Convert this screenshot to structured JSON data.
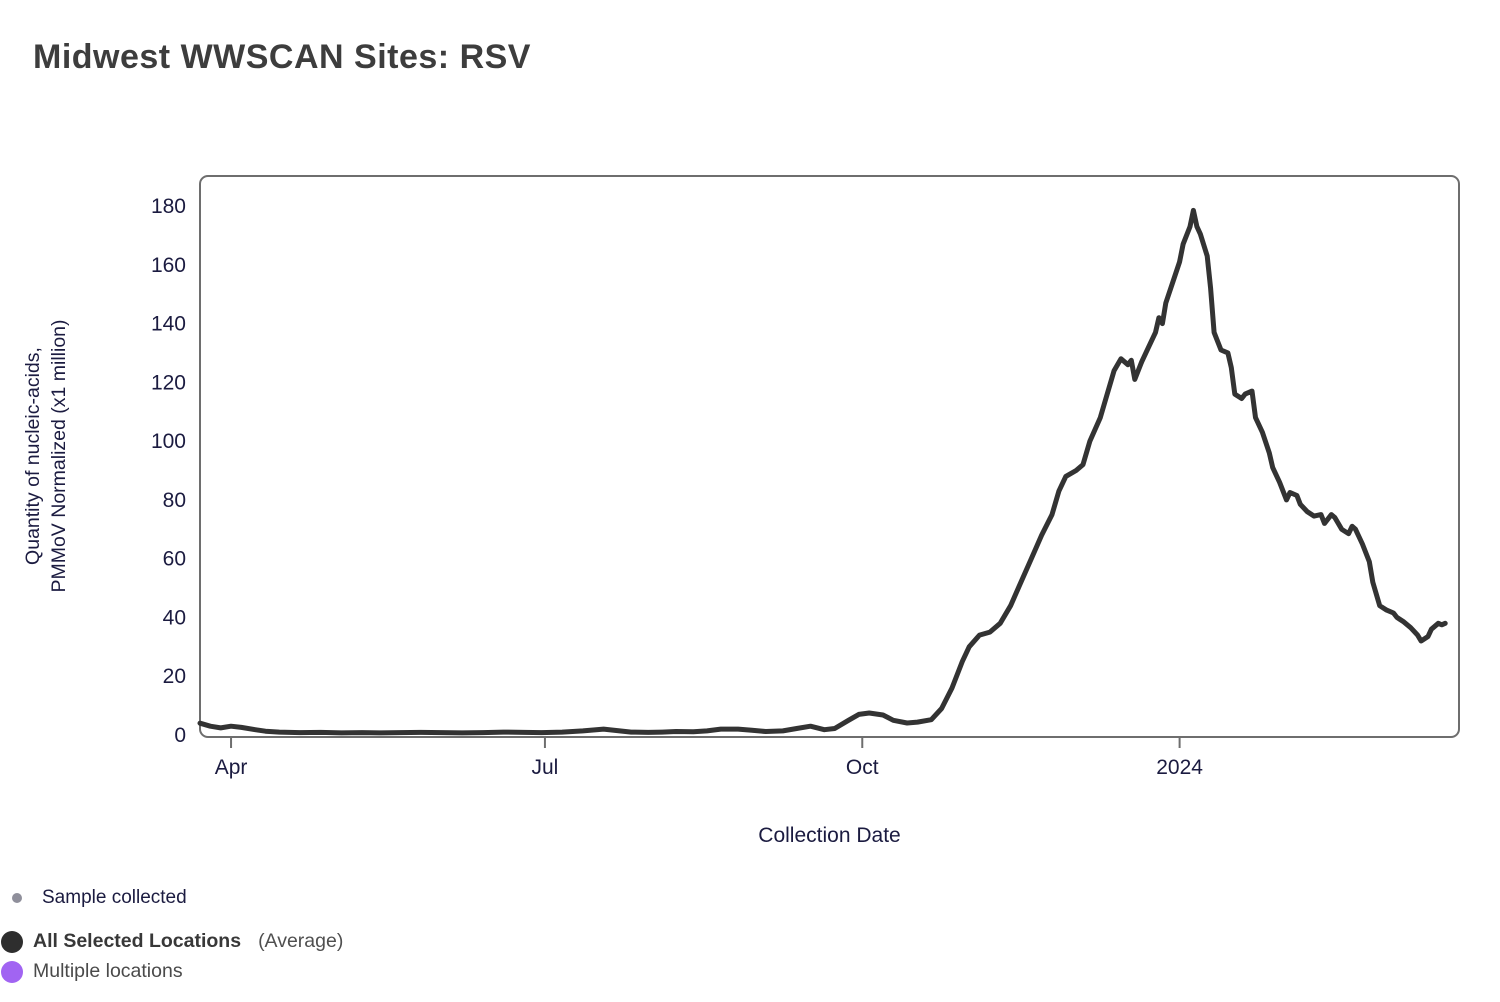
{
  "page": {
    "title": "Midwest WWSCAN Sites: RSV"
  },
  "chart_data": {
    "type": "line",
    "title": "Midwest WWSCAN Sites: RSV",
    "xlabel": "Collection Date",
    "ylabel_line1": "Quantity of nucleic-acids,",
    "ylabel_line2": "PMMoV Normalized (x1 million)",
    "grid": false,
    "legend_position": "bottom-left",
    "ylim": [
      0,
      190
    ],
    "y_ticks": [
      0,
      20,
      40,
      60,
      80,
      100,
      120,
      140,
      160,
      180
    ],
    "x_range": [
      "2023-03-23",
      "2024-03-22"
    ],
    "x_ticks": [
      {
        "label": "Apr",
        "date": "2023-04-01"
      },
      {
        "label": "Jul",
        "date": "2023-07-01"
      },
      {
        "label": "Oct",
        "date": "2023-10-01"
      },
      {
        "label": "2024",
        "date": "2024-01-01"
      }
    ],
    "colors": {
      "border": "#6e6e6e",
      "axis_text": "#1b1b40"
    },
    "series": [
      {
        "name": "All Selected Locations (Average)",
        "color": "#333333",
        "points": [
          [
            "2023-03-23",
            4.0
          ],
          [
            "2023-03-26",
            3.0
          ],
          [
            "2023-03-29",
            2.4
          ],
          [
            "2023-04-01",
            3.0
          ],
          [
            "2023-04-04",
            2.6
          ],
          [
            "2023-04-08",
            1.8
          ],
          [
            "2023-04-11",
            1.3
          ],
          [
            "2023-04-15",
            1.0
          ],
          [
            "2023-04-21",
            0.8
          ],
          [
            "2023-04-27",
            0.9
          ],
          [
            "2023-05-03",
            0.7
          ],
          [
            "2023-05-09",
            0.8
          ],
          [
            "2023-05-14",
            0.7
          ],
          [
            "2023-05-20",
            0.8
          ],
          [
            "2023-05-26",
            0.9
          ],
          [
            "2023-06-01",
            0.8
          ],
          [
            "2023-06-07",
            0.7
          ],
          [
            "2023-06-13",
            0.8
          ],
          [
            "2023-06-19",
            1.0
          ],
          [
            "2023-06-25",
            0.9
          ],
          [
            "2023-06-30",
            0.8
          ],
          [
            "2023-07-06",
            1.0
          ],
          [
            "2023-07-12",
            1.4
          ],
          [
            "2023-07-18",
            2.0
          ],
          [
            "2023-07-22",
            1.5
          ],
          [
            "2023-07-26",
            1.0
          ],
          [
            "2023-07-31",
            0.9
          ],
          [
            "2023-08-04",
            1.0
          ],
          [
            "2023-08-08",
            1.2
          ],
          [
            "2023-08-13",
            1.1
          ],
          [
            "2023-08-17",
            1.4
          ],
          [
            "2023-08-21",
            2.0
          ],
          [
            "2023-08-26",
            2.0
          ],
          [
            "2023-08-30",
            1.6
          ],
          [
            "2023-09-03",
            1.2
          ],
          [
            "2023-09-08",
            1.4
          ],
          [
            "2023-09-12",
            2.2
          ],
          [
            "2023-09-16",
            3.0
          ],
          [
            "2023-09-20",
            1.8
          ],
          [
            "2023-09-23",
            2.2
          ],
          [
            "2023-09-27",
            5.0
          ],
          [
            "2023-09-30",
            7.0
          ],
          [
            "2023-10-03",
            7.5
          ],
          [
            "2023-10-07",
            6.8
          ],
          [
            "2023-10-10",
            5.0
          ],
          [
            "2023-10-14",
            4.1
          ],
          [
            "2023-10-17",
            4.4
          ],
          [
            "2023-10-21",
            5.2
          ],
          [
            "2023-10-24",
            9
          ],
          [
            "2023-10-27",
            16
          ],
          [
            "2023-10-30",
            25
          ],
          [
            "2023-11-01",
            30
          ],
          [
            "2023-11-04",
            34
          ],
          [
            "2023-11-07",
            35
          ],
          [
            "2023-11-10",
            38
          ],
          [
            "2023-11-13",
            44
          ],
          [
            "2023-11-16",
            52
          ],
          [
            "2023-11-19",
            60
          ],
          [
            "2023-11-22",
            68
          ],
          [
            "2023-11-25",
            75
          ],
          [
            "2023-11-27",
            83
          ],
          [
            "2023-11-29",
            88
          ],
          [
            "2023-12-02",
            90
          ],
          [
            "2023-12-04",
            92
          ],
          [
            "2023-12-06",
            100
          ],
          [
            "2023-12-09",
            108
          ],
          [
            "2023-12-11",
            116
          ],
          [
            "2023-12-13",
            124
          ],
          [
            "2023-12-15",
            128
          ],
          [
            "2023-12-17",
            126
          ],
          [
            "2023-12-18",
            127.5
          ],
          [
            "2023-12-19",
            121
          ],
          [
            "2023-12-21",
            127
          ],
          [
            "2023-12-23",
            132
          ],
          [
            "2023-12-25",
            137
          ],
          [
            "2023-12-26",
            142
          ],
          [
            "2023-12-27",
            140
          ],
          [
            "2023-12-28",
            147
          ],
          [
            "2023-12-30",
            154
          ],
          [
            "2024-01-01",
            161
          ],
          [
            "2024-01-02",
            167
          ],
          [
            "2024-01-04",
            173
          ],
          [
            "2024-01-05",
            178.5
          ],
          [
            "2024-01-06",
            173
          ],
          [
            "2024-01-07",
            170.5
          ],
          [
            "2024-01-09",
            163
          ],
          [
            "2024-01-10",
            152
          ],
          [
            "2024-01-11",
            137
          ],
          [
            "2024-01-13",
            131
          ],
          [
            "2024-01-15",
            130
          ],
          [
            "2024-01-16",
            125
          ],
          [
            "2024-01-17",
            116
          ],
          [
            "2024-01-19",
            114.5
          ],
          [
            "2024-01-20",
            116
          ],
          [
            "2024-01-22",
            117
          ],
          [
            "2024-01-23",
            108
          ],
          [
            "2024-01-25",
            103
          ],
          [
            "2024-01-27",
            96
          ],
          [
            "2024-01-28",
            91
          ],
          [
            "2024-01-30",
            86
          ],
          [
            "2024-02-01",
            80
          ],
          [
            "2024-02-02",
            82.5
          ],
          [
            "2024-02-04",
            81.5
          ],
          [
            "2024-02-05",
            78.5
          ],
          [
            "2024-02-07",
            76
          ],
          [
            "2024-02-09",
            74.5
          ],
          [
            "2024-02-11",
            75
          ],
          [
            "2024-02-12",
            72
          ],
          [
            "2024-02-14",
            75
          ],
          [
            "2024-02-15",
            74
          ],
          [
            "2024-02-17",
            70
          ],
          [
            "2024-02-19",
            68.5
          ],
          [
            "2024-02-20",
            71
          ],
          [
            "2024-02-21",
            70
          ],
          [
            "2024-02-23",
            65
          ],
          [
            "2024-02-25",
            59
          ],
          [
            "2024-02-26",
            52
          ],
          [
            "2024-02-28",
            44
          ],
          [
            "2024-03-01",
            42.5
          ],
          [
            "2024-03-03",
            41.5
          ],
          [
            "2024-03-04",
            40
          ],
          [
            "2024-03-06",
            38.5
          ],
          [
            "2024-03-08",
            36.5
          ],
          [
            "2024-03-10",
            34
          ],
          [
            "2024-03-11",
            32
          ],
          [
            "2024-03-13",
            33.5
          ],
          [
            "2024-03-14",
            36
          ],
          [
            "2024-03-16",
            38
          ],
          [
            "2024-03-17",
            37.5
          ],
          [
            "2024-03-18",
            38
          ]
        ]
      }
    ]
  },
  "legend": {
    "sample_collected": {
      "label": "Sample collected",
      "dot_color": "#8f8f9b"
    },
    "all_locations": {
      "label_bold": "All Selected Locations",
      "label_suffix": "(Average)",
      "dot_color": "#2e2e2e"
    },
    "multiple_locations": {
      "label": "Multiple locations",
      "dot_color": "#a164f2"
    }
  }
}
